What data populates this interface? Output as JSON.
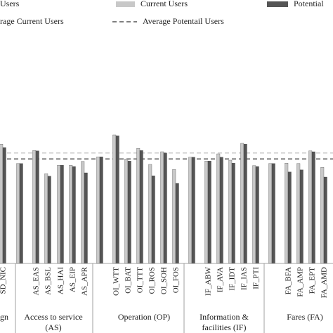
{
  "chart_data": {
    "type": "bar",
    "legend_fragment": "Users",
    "categories": [
      "SD_NIC",
      null,
      "AS_EAS",
      "AS_BSL",
      "AS_HAI",
      "AS_EIP",
      "AS_APR",
      null,
      "OI_WTT",
      "OI_BAT",
      "OI_TTT",
      "OI_ROS",
      "OI_SOH",
      "OI_FOS",
      null,
      "IF_ABW",
      "IF_AVA",
      "IF_IDT",
      "IF_IAS",
      "IF_PTI",
      null,
      "FA_BFA",
      "FA_AMP",
      "FA_EPT",
      "FA_AMD"
    ],
    "series": [
      {
        "name": "Current Users",
        "color": "#c8c8c8",
        "values": [
          2.83,
          2.37,
          2.68,
          2.13,
          2.33,
          2.33,
          2.42,
          2.53,
          3.05,
          2.48,
          2.73,
          2.35,
          2.65,
          2.23,
          2.52,
          2.43,
          2.6,
          2.45,
          2.85,
          2.32,
          2.37,
          2.38,
          2.37,
          2.67,
          2.28
        ]
      },
      {
        "name": "Potential",
        "color": "#555555",
        "values": [
          2.75,
          2.37,
          2.67,
          2.07,
          2.33,
          2.3,
          2.15,
          2.53,
          3.03,
          2.43,
          2.68,
          2.08,
          2.62,
          1.9,
          2.52,
          2.43,
          2.52,
          2.38,
          2.83,
          2.3,
          2.37,
          2.17,
          2.22,
          2.65,
          2.05
        ]
      }
    ],
    "averages": [
      {
        "name": "rage Current Users",
        "color": "#c8c8c8",
        "value": 2.62
      },
      {
        "name": "Average Potentail Users",
        "color": "#555555",
        "value": 2.48
      }
    ],
    "groups": [
      [
        "gn"
      ],
      [
        "Access to service",
        "(AS)"
      ],
      [
        "Operation (OP)"
      ],
      [
        "Information &",
        "facilities (IF)"
      ],
      [
        "Fares (FA)"
      ]
    ],
    "ylim": [
      0,
      5
    ]
  }
}
